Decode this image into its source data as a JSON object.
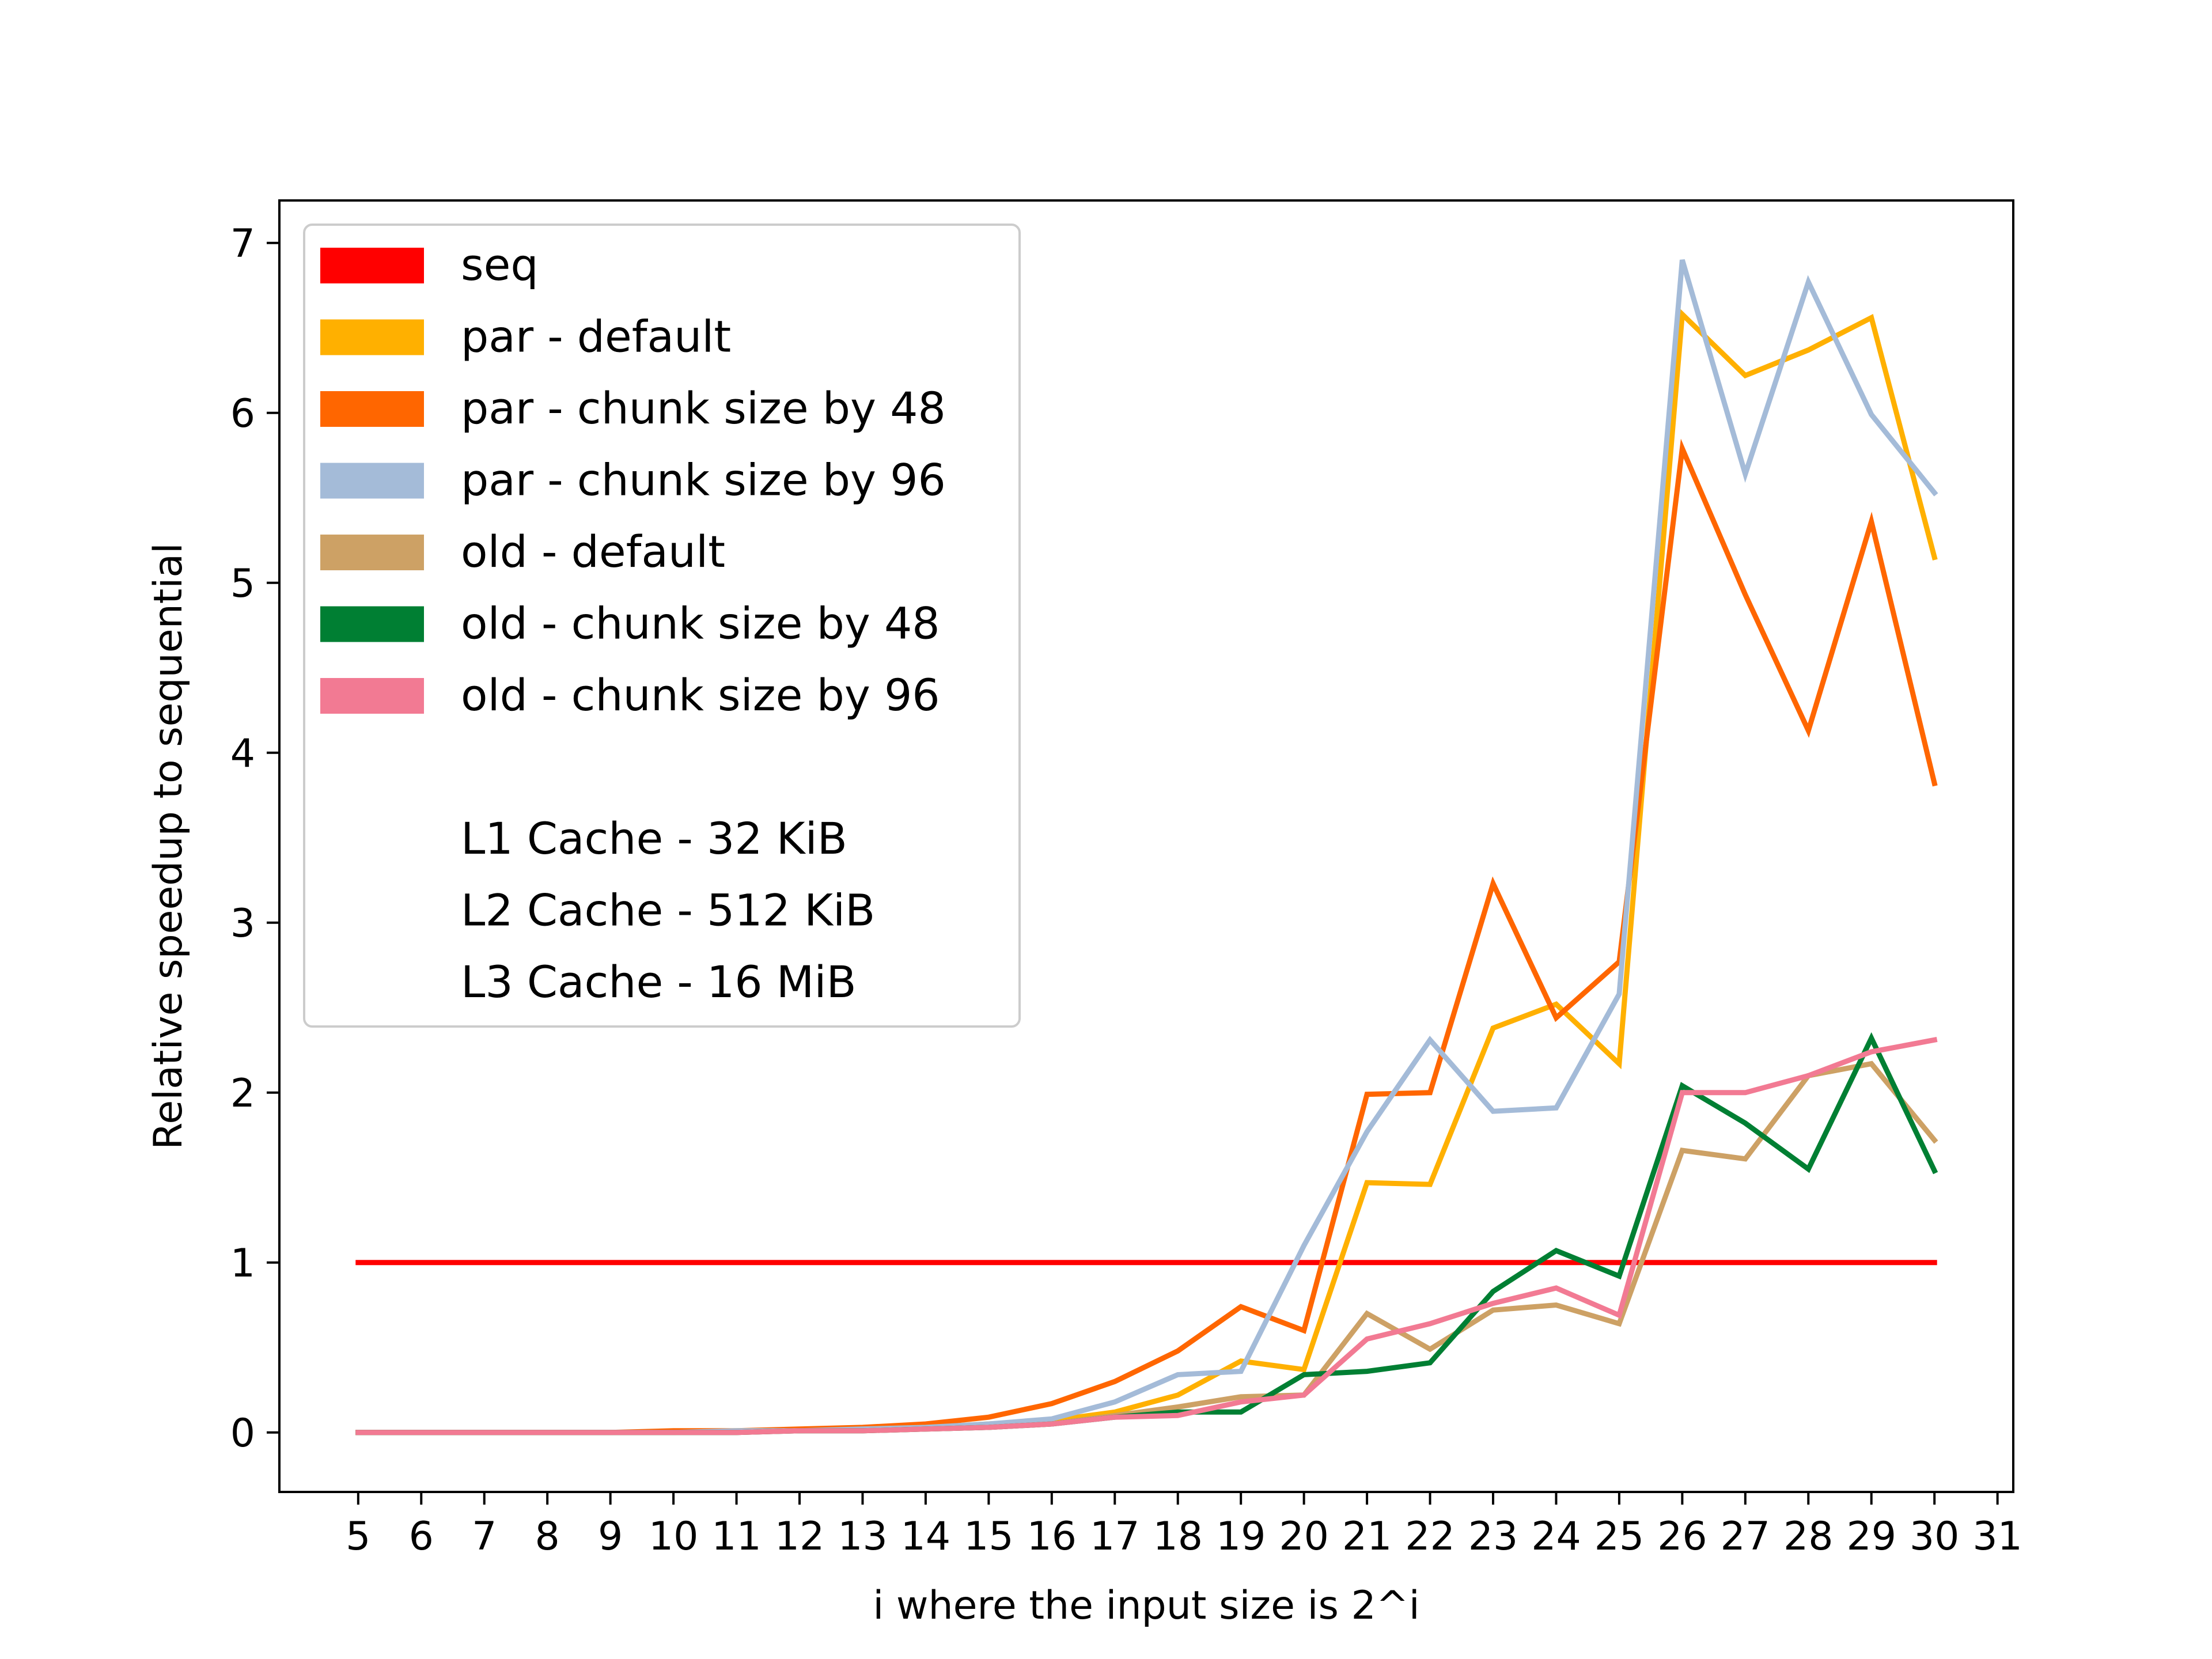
{
  "chart_data": {
    "type": "line",
    "xlabel": "i where the input size is 2^i",
    "ylabel": "Relative speedup to sequential",
    "x": [
      5,
      6,
      7,
      8,
      9,
      10,
      11,
      12,
      13,
      14,
      15,
      16,
      17,
      18,
      19,
      20,
      21,
      22,
      23,
      24,
      25,
      26,
      27,
      28,
      29,
      30
    ],
    "x_ticks": [
      "5",
      "6",
      "7",
      "8",
      "9",
      "10",
      "11",
      "12",
      "13",
      "14",
      "15",
      "16",
      "17",
      "18",
      "19",
      "20",
      "21",
      "22",
      "23",
      "24",
      "25",
      "26",
      "27",
      "28",
      "29",
      "30",
      "31"
    ],
    "y_ticks": [
      "0",
      "1",
      "2",
      "3",
      "4",
      "5",
      "6",
      "7"
    ],
    "xlim": [
      3.75,
      31.25
    ],
    "ylim": [
      -0.35,
      7.25
    ],
    "grid": false,
    "legend_position": "top-left",
    "series": [
      {
        "name": "seq",
        "color": "#ff0000",
        "values": [
          1,
          1,
          1,
          1,
          1,
          1,
          1,
          1,
          1,
          1,
          1,
          1,
          1,
          1,
          1,
          1,
          1,
          1,
          1,
          1,
          1,
          1,
          1,
          1,
          1,
          1
        ]
      },
      {
        "name": "par - default",
        "color": "#ffb000",
        "values": [
          0.0,
          0.0,
          0.0,
          0.0,
          0.0,
          0.0,
          0.01,
          0.01,
          0.02,
          0.03,
          0.05,
          0.07,
          0.12,
          0.22,
          0.42,
          0.37,
          1.47,
          1.46,
          2.38,
          2.52,
          2.17,
          6.58,
          6.22,
          6.37,
          6.56,
          5.15
        ]
      },
      {
        "name": "par - chunk size by 48",
        "color": "#ff6600",
        "values": [
          0.0,
          0.0,
          0.0,
          0.0,
          0.0,
          0.01,
          0.01,
          0.02,
          0.03,
          0.05,
          0.09,
          0.17,
          0.3,
          0.48,
          0.74,
          0.6,
          1.99,
          2.0,
          3.23,
          2.44,
          2.77,
          5.79,
          4.93,
          4.13,
          5.36,
          3.82
        ]
      },
      {
        "name": "par - chunk size by 96",
        "color": "#a4bbd8",
        "values": [
          0.0,
          0.0,
          0.0,
          0.0,
          0.0,
          0.0,
          0.01,
          0.01,
          0.02,
          0.03,
          0.05,
          0.08,
          0.18,
          0.34,
          0.36,
          1.1,
          1.77,
          2.31,
          1.89,
          1.91,
          2.58,
          6.9,
          5.64,
          6.77,
          5.99,
          5.53
        ]
      },
      {
        "name": "old - default",
        "color": "#cda165",
        "values": [
          0.0,
          0.0,
          0.0,
          0.0,
          0.0,
          0.0,
          0.0,
          0.01,
          0.01,
          0.02,
          0.03,
          0.05,
          0.1,
          0.15,
          0.21,
          0.22,
          0.7,
          0.49,
          0.72,
          0.75,
          0.64,
          1.66,
          1.61,
          2.1,
          2.17,
          1.72
        ]
      },
      {
        "name": "old - chunk size by 48",
        "color": "#007f33",
        "values": [
          0.0,
          0.0,
          0.0,
          0.0,
          0.0,
          0.0,
          0.0,
          0.01,
          0.01,
          0.02,
          0.03,
          0.05,
          0.09,
          0.12,
          0.12,
          0.34,
          0.36,
          0.41,
          0.83,
          1.07,
          0.92,
          2.04,
          1.82,
          1.55,
          2.32,
          1.54
        ]
      },
      {
        "name": "old - chunk size by 96",
        "color": "#f27a93",
        "values": [
          0.0,
          0.0,
          0.0,
          0.0,
          0.0,
          0.0,
          0.0,
          0.01,
          0.01,
          0.02,
          0.03,
          0.05,
          0.09,
          0.1,
          0.18,
          0.22,
          0.55,
          0.64,
          0.76,
          0.85,
          0.69,
          2.0,
          2.0,
          2.1,
          2.24,
          2.31
        ]
      }
    ],
    "annotations": [
      "L1 Cache - 32 KiB",
      "L2 Cache - 512 KiB",
      "L3 Cache - 16 MiB"
    ]
  }
}
